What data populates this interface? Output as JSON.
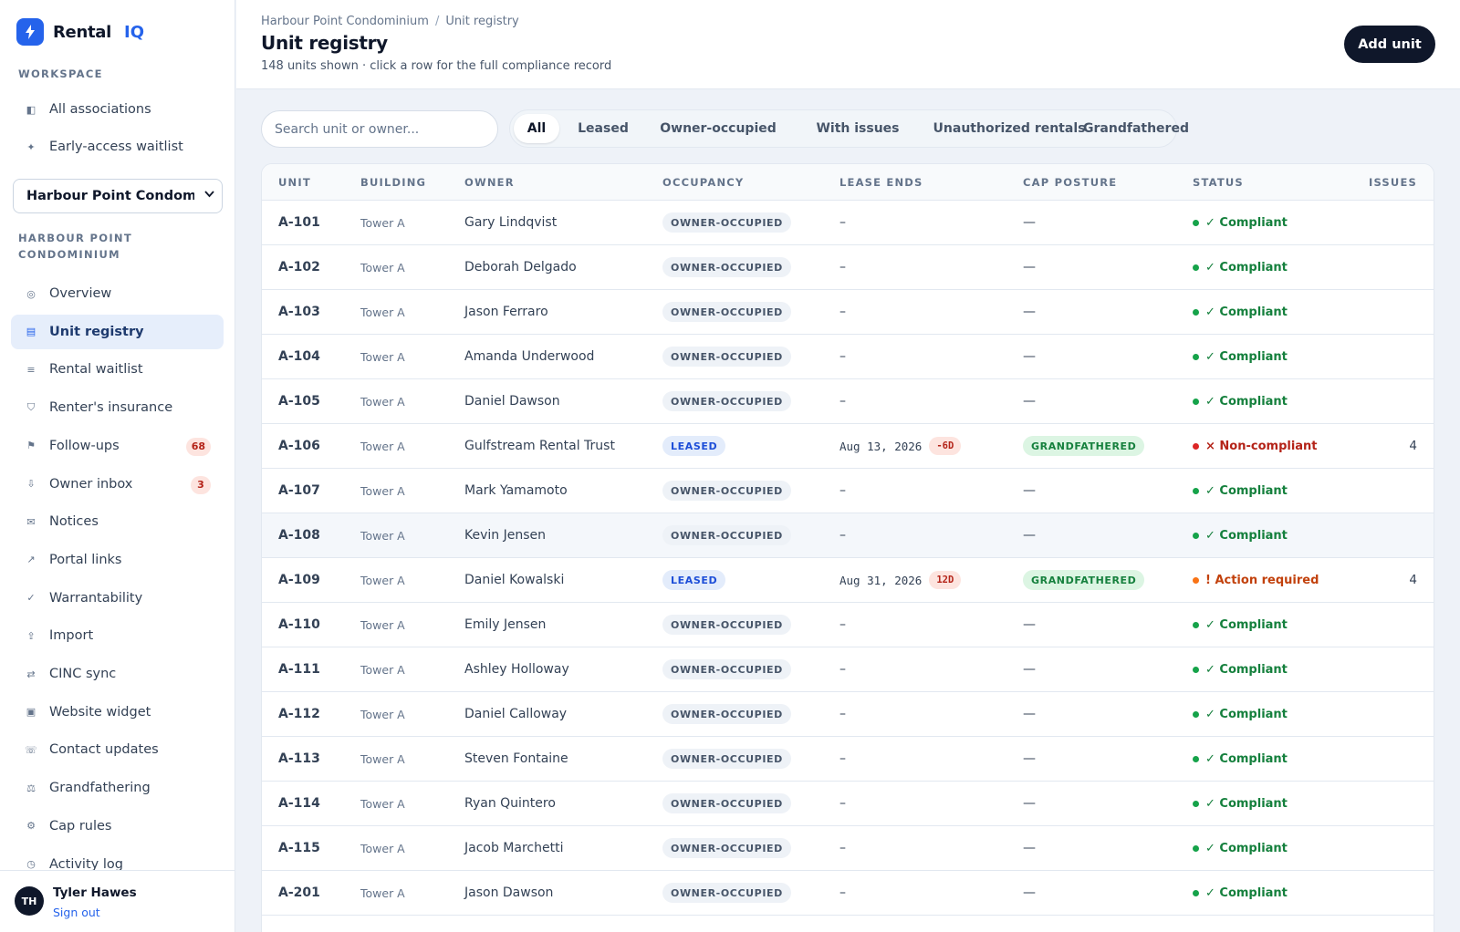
{
  "brand": {
    "name": "Rental",
    "accent": "IQ",
    "logo_icon": "bolt-icon"
  },
  "sidebar": {
    "workspace_label": "WORKSPACE",
    "workspace_items": [
      {
        "label": "All associations",
        "icon": "building-icon"
      },
      {
        "label": "Early-access waitlist",
        "icon": "sparkle-icon"
      }
    ],
    "association_select": "Harbour Point Condominium",
    "association_label": "HARBOUR POINT CONDOMINIUM",
    "items": [
      {
        "label": "Overview",
        "icon": "target-icon"
      },
      {
        "label": "Unit registry",
        "icon": "list-icon",
        "active": true
      },
      {
        "label": "Rental waitlist",
        "icon": "menu-icon"
      },
      {
        "label": "Renter's insurance",
        "icon": "shield-icon"
      },
      {
        "label": "Follow-ups",
        "icon": "flag-icon",
        "badge": "68"
      },
      {
        "label": "Owner inbox",
        "icon": "inbox-icon",
        "badge": "3"
      },
      {
        "label": "Notices",
        "icon": "mail-icon"
      },
      {
        "label": "Portal links",
        "icon": "external-link-icon"
      },
      {
        "label": "Warrantability",
        "icon": "check-icon"
      },
      {
        "label": "Import",
        "icon": "upload-icon"
      },
      {
        "label": "CINC sync",
        "icon": "sync-icon"
      },
      {
        "label": "Website widget",
        "icon": "widget-icon"
      },
      {
        "label": "Contact updates",
        "icon": "phone-icon"
      },
      {
        "label": "Grandfathering",
        "icon": "scale-icon"
      },
      {
        "label": "Cap rules",
        "icon": "gear-icon"
      },
      {
        "label": "Activity log",
        "icon": "clock-icon"
      }
    ],
    "user": {
      "initials": "TH",
      "name": "Tyler Hawes",
      "sign_out": "Sign out"
    }
  },
  "header": {
    "breadcrumb": [
      "Harbour Point Condominium",
      "Unit registry"
    ],
    "breadcrumb_sep": "/",
    "title": "Unit registry",
    "subtitle": "148 units shown · click a row for the full compliance record",
    "add_button": "Add unit"
  },
  "filters": {
    "search_placeholder": "Search unit or owner...",
    "tabs": [
      "All",
      "Leased",
      "Owner-occupied",
      "With issues",
      "Unauthorized rentals",
      "Grandfathered"
    ],
    "active_tab": "All"
  },
  "table": {
    "columns": [
      "UNIT",
      "BUILDING",
      "OWNER",
      "OCCUPANCY",
      "LEASE ENDS",
      "CAP POSTURE",
      "STATUS",
      "ISSUES"
    ],
    "rows": [
      {
        "unit": "A-101",
        "building": "Tower A",
        "owner": "Gary Lindqvist",
        "occupancy": "OWNER-OCCUPIED",
        "lease_ends": "–",
        "lease_days": "",
        "cap": "—",
        "status": "✓ Compliant",
        "status_type": "ok",
        "issues": ""
      },
      {
        "unit": "A-102",
        "building": "Tower A",
        "owner": "Deborah Delgado",
        "occupancy": "OWNER-OCCUPIED",
        "lease_ends": "–",
        "lease_days": "",
        "cap": "—",
        "status": "✓ Compliant",
        "status_type": "ok",
        "issues": ""
      },
      {
        "unit": "A-103",
        "building": "Tower A",
        "owner": "Jason Ferraro",
        "occupancy": "OWNER-OCCUPIED",
        "lease_ends": "–",
        "lease_days": "",
        "cap": "—",
        "status": "✓ Compliant",
        "status_type": "ok",
        "issues": ""
      },
      {
        "unit": "A-104",
        "building": "Tower A",
        "owner": "Amanda Underwood",
        "occupancy": "OWNER-OCCUPIED",
        "lease_ends": "–",
        "lease_days": "",
        "cap": "—",
        "status": "✓ Compliant",
        "status_type": "ok",
        "issues": ""
      },
      {
        "unit": "A-105",
        "building": "Tower A",
        "owner": "Daniel Dawson",
        "occupancy": "OWNER-OCCUPIED",
        "lease_ends": "–",
        "lease_days": "",
        "cap": "—",
        "status": "✓ Compliant",
        "status_type": "ok",
        "issues": ""
      },
      {
        "unit": "A-106",
        "building": "Tower A",
        "owner": "Gulfstream Rental Trust",
        "occupancy": "LEASED",
        "lease_ends": "Aug 13, 2026",
        "lease_days": "-6D",
        "cap": "GRANDFATHERED",
        "status": "× Non-compliant",
        "status_type": "bad",
        "issues": "4"
      },
      {
        "unit": "A-107",
        "building": "Tower A",
        "owner": "Mark Yamamoto",
        "occupancy": "OWNER-OCCUPIED",
        "lease_ends": "–",
        "lease_days": "",
        "cap": "—",
        "status": "✓ Compliant",
        "status_type": "ok",
        "issues": ""
      },
      {
        "unit": "A-108",
        "building": "Tower A",
        "owner": "Kevin Jensen",
        "occupancy": "OWNER-OCCUPIED",
        "lease_ends": "–",
        "lease_days": "",
        "cap": "—",
        "status": "✓ Compliant",
        "status_type": "ok",
        "issues": "",
        "hover": true
      },
      {
        "unit": "A-109",
        "building": "Tower A",
        "owner": "Daniel Kowalski",
        "occupancy": "LEASED",
        "lease_ends": "Aug 31, 2026",
        "lease_days": "12D",
        "cap": "GRANDFATHERED",
        "status": "! Action required",
        "status_type": "warn",
        "issues": "4"
      },
      {
        "unit": "A-110",
        "building": "Tower A",
        "owner": "Emily Jensen",
        "occupancy": "OWNER-OCCUPIED",
        "lease_ends": "–",
        "lease_days": "",
        "cap": "—",
        "status": "✓ Compliant",
        "status_type": "ok",
        "issues": ""
      },
      {
        "unit": "A-111",
        "building": "Tower A",
        "owner": "Ashley Holloway",
        "occupancy": "OWNER-OCCUPIED",
        "lease_ends": "–",
        "lease_days": "",
        "cap": "—",
        "status": "✓ Compliant",
        "status_type": "ok",
        "issues": ""
      },
      {
        "unit": "A-112",
        "building": "Tower A",
        "owner": "Daniel Calloway",
        "occupancy": "OWNER-OCCUPIED",
        "lease_ends": "–",
        "lease_days": "",
        "cap": "—",
        "status": "✓ Compliant",
        "status_type": "ok",
        "issues": ""
      },
      {
        "unit": "A-113",
        "building": "Tower A",
        "owner": "Steven Fontaine",
        "occupancy": "OWNER-OCCUPIED",
        "lease_ends": "–",
        "lease_days": "",
        "cap": "—",
        "status": "✓ Compliant",
        "status_type": "ok",
        "issues": ""
      },
      {
        "unit": "A-114",
        "building": "Tower A",
        "owner": "Ryan Quintero",
        "occupancy": "OWNER-OCCUPIED",
        "lease_ends": "–",
        "lease_days": "",
        "cap": "—",
        "status": "✓ Compliant",
        "status_type": "ok",
        "issues": ""
      },
      {
        "unit": "A-115",
        "building": "Tower A",
        "owner": "Jacob Marchetti",
        "occupancy": "OWNER-OCCUPIED",
        "lease_ends": "–",
        "lease_days": "",
        "cap": "—",
        "status": "✓ Compliant",
        "status_type": "ok",
        "issues": ""
      },
      {
        "unit": "A-201",
        "building": "Tower A",
        "owner": "Jason Dawson",
        "occupancy": "OWNER-OCCUPIED",
        "lease_ends": "–",
        "lease_days": "",
        "cap": "—",
        "status": "✓ Compliant",
        "status_type": "ok",
        "issues": ""
      }
    ]
  },
  "colors": {
    "accent": "#2563eb",
    "dark": "#0f172a",
    "ok": "#15803d",
    "bad": "#b42318",
    "warn": "#c2410c"
  }
}
